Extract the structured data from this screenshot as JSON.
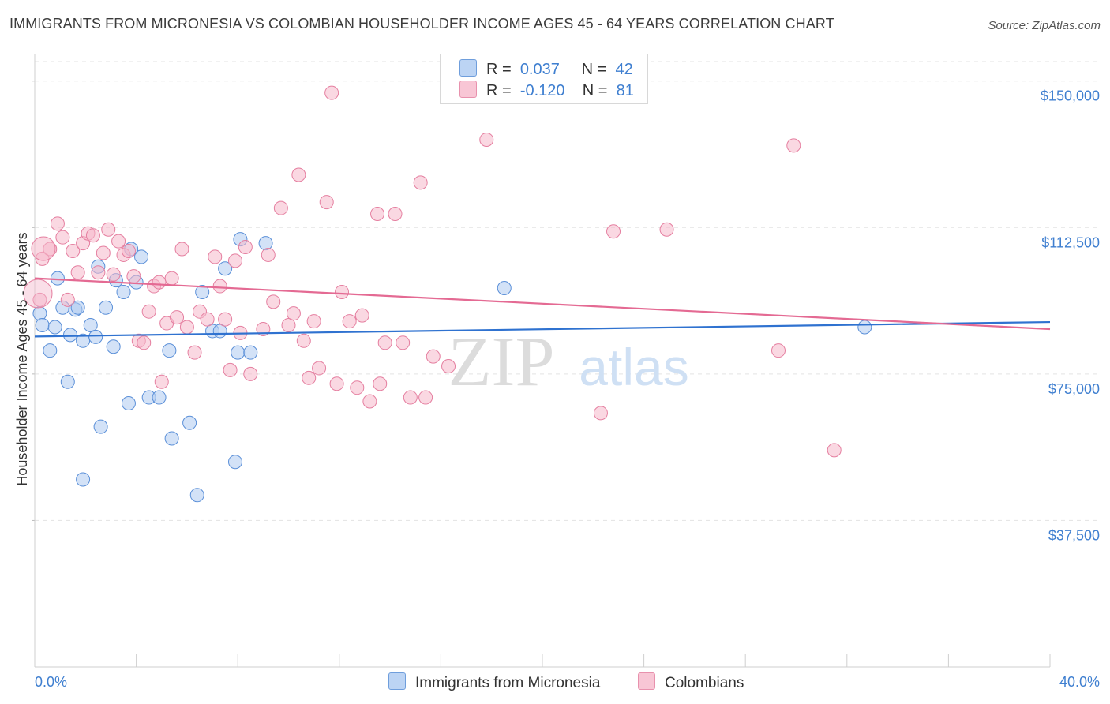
{
  "title": "IMMIGRANTS FROM MICRONESIA VS COLOMBIAN HOUSEHOLDER INCOME AGES 45 - 64 YEARS CORRELATION CHART",
  "source": "Source: ZipAtlas.com",
  "watermark": {
    "zip": "ZIP",
    "atlas": "atlas"
  },
  "legend": {
    "rows": [
      {
        "r_label": "R =",
        "r_value": "0.037",
        "n_label": "N =",
        "n_value": "42",
        "color": "#aecbf0"
      },
      {
        "r_label": "R =",
        "r_value": "-0.120",
        "n_label": "N =",
        "n_value": "81",
        "color": "#f5b8cb"
      }
    ]
  },
  "bottom_legend": [
    {
      "label": "Immigrants from Micronesia",
      "color": "#aecbf0"
    },
    {
      "label": "Colombians",
      "color": "#f5b8cb"
    }
  ],
  "chart_data": {
    "type": "scatter",
    "title": "IMMIGRANTS FROM MICRONESIA VS COLOMBIAN HOUSEHOLDER INCOME AGES 45 - 64 YEARS CORRELATION CHART",
    "xlabel": "",
    "ylabel": "Householder Income Ages 45 - 64 years",
    "xlim": [
      0,
      40
    ],
    "ylim": [
      0,
      155000
    ],
    "x_tick_labels": [
      "0.0%",
      "40.0%"
    ],
    "y_ticks": [
      37500,
      75000,
      112500,
      150000
    ],
    "y_tick_labels": [
      "$37,500",
      "$75,000",
      "$112,500",
      "$150,000"
    ],
    "grid": true,
    "legend_position": "top-center",
    "series": [
      {
        "name": "Immigrants from Micronesia",
        "color": "#aecbf0",
        "stroke": "#5a8fd8",
        "trend": {
          "x": [
            0,
            40
          ],
          "y": [
            84600,
            88300
          ],
          "color": "#2f72d0"
        },
        "points": [
          [
            0.2,
            90500
          ],
          [
            0.3,
            87500
          ],
          [
            0.6,
            81000
          ],
          [
            0.8,
            87000
          ],
          [
            0.9,
            99500
          ],
          [
            1.1,
            92000
          ],
          [
            1.3,
            73000
          ],
          [
            1.4,
            85000
          ],
          [
            1.6,
            91500
          ],
          [
            1.7,
            92000
          ],
          [
            1.9,
            83500
          ],
          [
            1.9,
            48000
          ],
          [
            2.2,
            87500
          ],
          [
            2.4,
            84500
          ],
          [
            2.5,
            102500
          ],
          [
            2.6,
            61500
          ],
          [
            2.8,
            92000
          ],
          [
            3.1,
            82000
          ],
          [
            3.2,
            99000
          ],
          [
            3.5,
            96000
          ],
          [
            3.7,
            67500
          ],
          [
            3.8,
            107000
          ],
          [
            4.0,
            98500
          ],
          [
            4.2,
            105000
          ],
          [
            4.5,
            69000
          ],
          [
            4.9,
            69000
          ],
          [
            5.3,
            81000
          ],
          [
            5.4,
            58500
          ],
          [
            6.1,
            62500
          ],
          [
            6.4,
            44000
          ],
          [
            6.6,
            96000
          ],
          [
            7.0,
            86000
          ],
          [
            7.3,
            86000
          ],
          [
            7.5,
            102000
          ],
          [
            7.9,
            52500
          ],
          [
            8.0,
            80500
          ],
          [
            8.1,
            109500
          ],
          [
            8.5,
            80500
          ],
          [
            9.1,
            108500
          ],
          [
            18.5,
            97000
          ],
          [
            32.7,
            87000
          ]
        ]
      },
      {
        "name": "Colombians",
        "color": "#f5b8cb",
        "stroke": "#e57fa0",
        "trend": {
          "x": [
            0,
            40
          ],
          "y": [
            99500,
            86500
          ],
          "color": "#e46a93"
        },
        "points": [
          [
            0.2,
            94000
          ],
          [
            0.3,
            104500
          ],
          [
            0.6,
            107000
          ],
          [
            0.9,
            113500
          ],
          [
            1.1,
            110000
          ],
          [
            1.3,
            94000
          ],
          [
            1.5,
            106500
          ],
          [
            1.7,
            101000
          ],
          [
            1.9,
            108500
          ],
          [
            2.1,
            111000
          ],
          [
            2.3,
            110500
          ],
          [
            2.5,
            101000
          ],
          [
            2.7,
            106000
          ],
          [
            2.9,
            112000
          ],
          [
            3.1,
            100500
          ],
          [
            3.3,
            109000
          ],
          [
            3.5,
            105500
          ],
          [
            3.7,
            106500
          ],
          [
            3.9,
            100000
          ],
          [
            4.1,
            83500
          ],
          [
            4.3,
            83000
          ],
          [
            4.5,
            91000
          ],
          [
            4.7,
            97500
          ],
          [
            4.9,
            98500
          ],
          [
            5.0,
            73000
          ],
          [
            5.2,
            88000
          ],
          [
            5.4,
            99500
          ],
          [
            5.6,
            89500
          ],
          [
            5.8,
            107000
          ],
          [
            6.0,
            87000
          ],
          [
            6.3,
            80500
          ],
          [
            6.5,
            91000
          ],
          [
            6.8,
            89000
          ],
          [
            7.1,
            105000
          ],
          [
            7.3,
            97500
          ],
          [
            7.5,
            89000
          ],
          [
            7.7,
            76000
          ],
          [
            7.9,
            104000
          ],
          [
            8.1,
            85500
          ],
          [
            8.3,
            107500
          ],
          [
            8.5,
            75000
          ],
          [
            9.0,
            86500
          ],
          [
            9.2,
            105500
          ],
          [
            9.4,
            93500
          ],
          [
            9.7,
            117500
          ],
          [
            10.0,
            87500
          ],
          [
            10.2,
            90500
          ],
          [
            10.4,
            126000
          ],
          [
            10.6,
            83500
          ],
          [
            10.8,
            74000
          ],
          [
            11.0,
            88500
          ],
          [
            11.2,
            76500
          ],
          [
            11.5,
            119000
          ],
          [
            11.7,
            147000
          ],
          [
            11.9,
            72500
          ],
          [
            12.1,
            96000
          ],
          [
            12.4,
            88500
          ],
          [
            12.7,
            71500
          ],
          [
            12.9,
            90000
          ],
          [
            13.2,
            68000
          ],
          [
            13.5,
            116000
          ],
          [
            13.6,
            72500
          ],
          [
            13.8,
            83000
          ],
          [
            14.2,
            116000
          ],
          [
            14.5,
            83000
          ],
          [
            14.8,
            69000
          ],
          [
            15.2,
            124000
          ],
          [
            15.4,
            69000
          ],
          [
            15.7,
            79500
          ],
          [
            16.3,
            77000
          ],
          [
            17.8,
            135000
          ],
          [
            22.3,
            65000
          ],
          [
            22.8,
            111500
          ],
          [
            24.9,
            112000
          ],
          [
            29.3,
            81000
          ],
          [
            29.9,
            133500
          ],
          [
            31.5,
            55500
          ]
        ]
      }
    ]
  }
}
